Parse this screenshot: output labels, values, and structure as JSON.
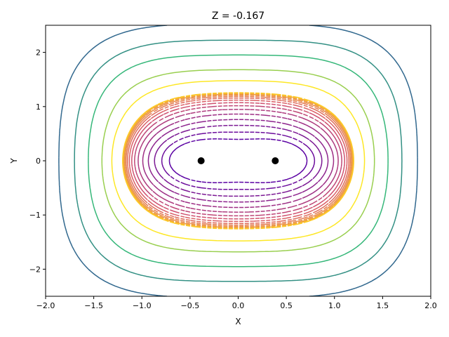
{
  "chart_data": {
    "type": "contour",
    "title": "Z = -0.167",
    "xlabel": "X",
    "ylabel": "Y",
    "xlim": [
      -2.0,
      2.0
    ],
    "ylim": [
      -2.5,
      2.5
    ],
    "xticks": [
      -2.0,
      -1.5,
      -1.0,
      -0.5,
      0.0,
      0.5,
      1.0,
      1.5,
      2.0
    ],
    "xtick_labels": [
      "−2.0",
      "−1.5",
      "−1.0",
      "−0.5",
      "0.0",
      "0.5",
      "1.0",
      "1.5",
      "2.0"
    ],
    "yticks": [
      -2,
      -1,
      0,
      1,
      2
    ],
    "ytick_labels": [
      "−2",
      "−1",
      "0",
      "1",
      "2"
    ],
    "grid": false,
    "points": [
      {
        "x": -0.385,
        "y": 0.0
      },
      {
        "x": 0.385,
        "y": 0.0
      }
    ],
    "negative_levels": [
      -2.5,
      -2.0,
      -1.6,
      -1.3,
      -1.05,
      -0.85,
      -0.7,
      -0.58,
      -0.48,
      -0.4,
      -0.34,
      -0.29,
      -0.25,
      -0.22,
      -0.2,
      -0.19
    ],
    "positive_levels": [
      0.3,
      0.8,
      1.6,
      2.6,
      4.0
    ],
    "colors": {
      "dashed_low": "#5b02a3",
      "dashed_mid": "#d8576b",
      "dashed_high": "#fdca26",
      "solid_low": "#fde725",
      "solid_mid": "#35b779",
      "solid_high": "#31688e",
      "points": "#000000"
    }
  }
}
